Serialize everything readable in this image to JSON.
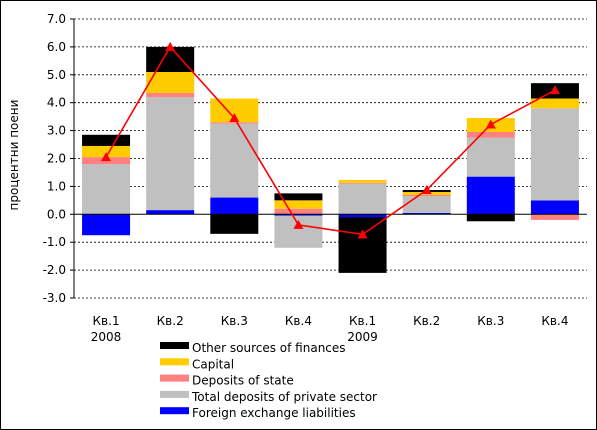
{
  "chart_data": {
    "type": "bar",
    "stacked": true,
    "title": "",
    "xlabel": "",
    "ylabel": "процентни поени",
    "ylim": [
      -3.0,
      7.0
    ],
    "yticks": [
      "7.0",
      "6.0",
      "5.0",
      "4.0",
      "3.0",
      "2.0",
      "1.0",
      "0.0",
      "-1.0",
      "-2.0",
      "-3.0"
    ],
    "grid": "horizontal dashed",
    "legend_position": "bottom",
    "categories": [
      {
        "label": "Кв.1",
        "year": "2008"
      },
      {
        "label": "Кв.2",
        "year": ""
      },
      {
        "label": "Кв.3",
        "year": ""
      },
      {
        "label": "Кв.4",
        "year": ""
      },
      {
        "label": "Кв.1",
        "year": "2009"
      },
      {
        "label": "Кв.2",
        "year": ""
      },
      {
        "label": "Кв.3",
        "year": ""
      },
      {
        "label": "Кв.4",
        "year": ""
      }
    ],
    "series": [
      {
        "name": "Foreign exchange liabilities",
        "color": "#0000ff",
        "values": [
          -0.75,
          0.15,
          0.6,
          -0.05,
          -0.1,
          0.05,
          1.35,
          0.5
        ]
      },
      {
        "name": "Total deposits of private sector",
        "color": "#c0c0c0",
        "values": [
          1.8,
          4.05,
          2.65,
          -1.15,
          1.1,
          0.6,
          1.4,
          3.3
        ]
      },
      {
        "name": "Deposits of state",
        "color": "#ff8080",
        "values": [
          0.25,
          0.15,
          0.05,
          0.2,
          0.03,
          0.05,
          0.2,
          -0.2
        ]
      },
      {
        "name": "Capital",
        "color": "#ffcc00",
        "values": [
          0.4,
          0.75,
          0.85,
          0.3,
          0.1,
          0.1,
          0.5,
          0.35
        ]
      },
      {
        "name": "Other sources of finances",
        "color": "#000000",
        "values": [
          0.4,
          0.9,
          -0.7,
          0.25,
          -2.0,
          0.07,
          -0.25,
          0.55
        ]
      }
    ],
    "line": {
      "color": "#ff0000",
      "marker": "triangle",
      "values": [
        2.05,
        6.0,
        3.45,
        -0.38,
        -0.72,
        0.87,
        3.22,
        4.45
      ]
    },
    "legend_order": [
      "Other sources of finances",
      "Capital",
      "Deposits of state",
      "Total deposits of private sector",
      "Foreign exchange liabilities"
    ]
  }
}
